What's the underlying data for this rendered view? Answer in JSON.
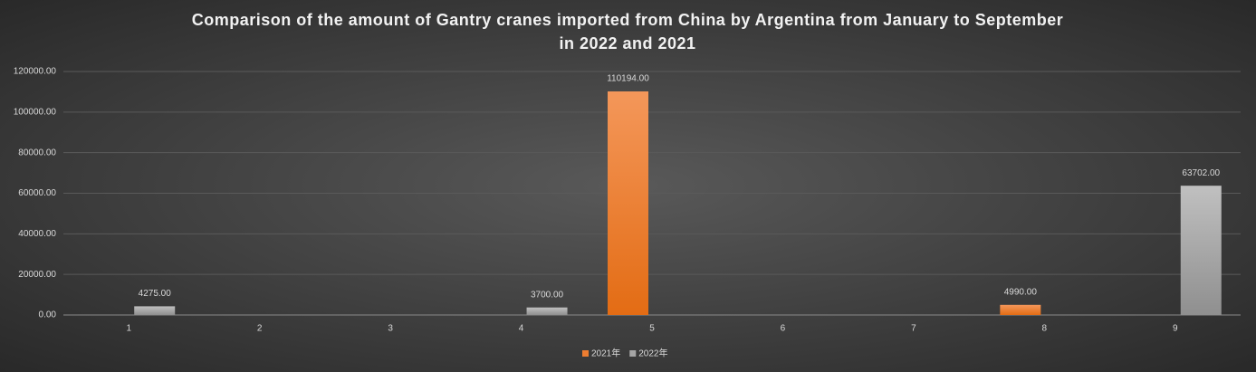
{
  "chart_data": {
    "type": "bar",
    "title": "Comparison of the amount of Gantry cranes imported from China by Argentina from January to September in 2022 and 2021",
    "categories": [
      "1",
      "2",
      "3",
      "4",
      "5",
      "6",
      "7",
      "8",
      "9"
    ],
    "series": [
      {
        "name": "2021年",
        "color": "#ed7d31",
        "values": [
          null,
          null,
          null,
          null,
          110194,
          null,
          null,
          4990,
          null
        ],
        "value_labels": [
          null,
          null,
          null,
          null,
          "110194.00",
          null,
          null,
          "4990.00",
          null
        ]
      },
      {
        "name": "2022年",
        "color": "#a5a5a5",
        "values": [
          4275,
          null,
          null,
          3700,
          null,
          null,
          null,
          null,
          63702
        ],
        "value_labels": [
          "4275.00",
          null,
          null,
          "3700.00",
          null,
          null,
          null,
          null,
          "63702.00"
        ]
      }
    ],
    "ylim": [
      0,
      120000
    ],
    "yticks": [
      {
        "value": 0,
        "label": "0.00"
      },
      {
        "value": 20000,
        "label": "20000.00"
      },
      {
        "value": 40000,
        "label": "40000.00"
      },
      {
        "value": 60000,
        "label": "60000.00"
      },
      {
        "value": 80000,
        "label": "80000.00"
      },
      {
        "value": 100000,
        "label": "100000.00"
      },
      {
        "value": 120000,
        "label": "120000.00"
      }
    ],
    "grid": true,
    "legend": "bottom"
  }
}
